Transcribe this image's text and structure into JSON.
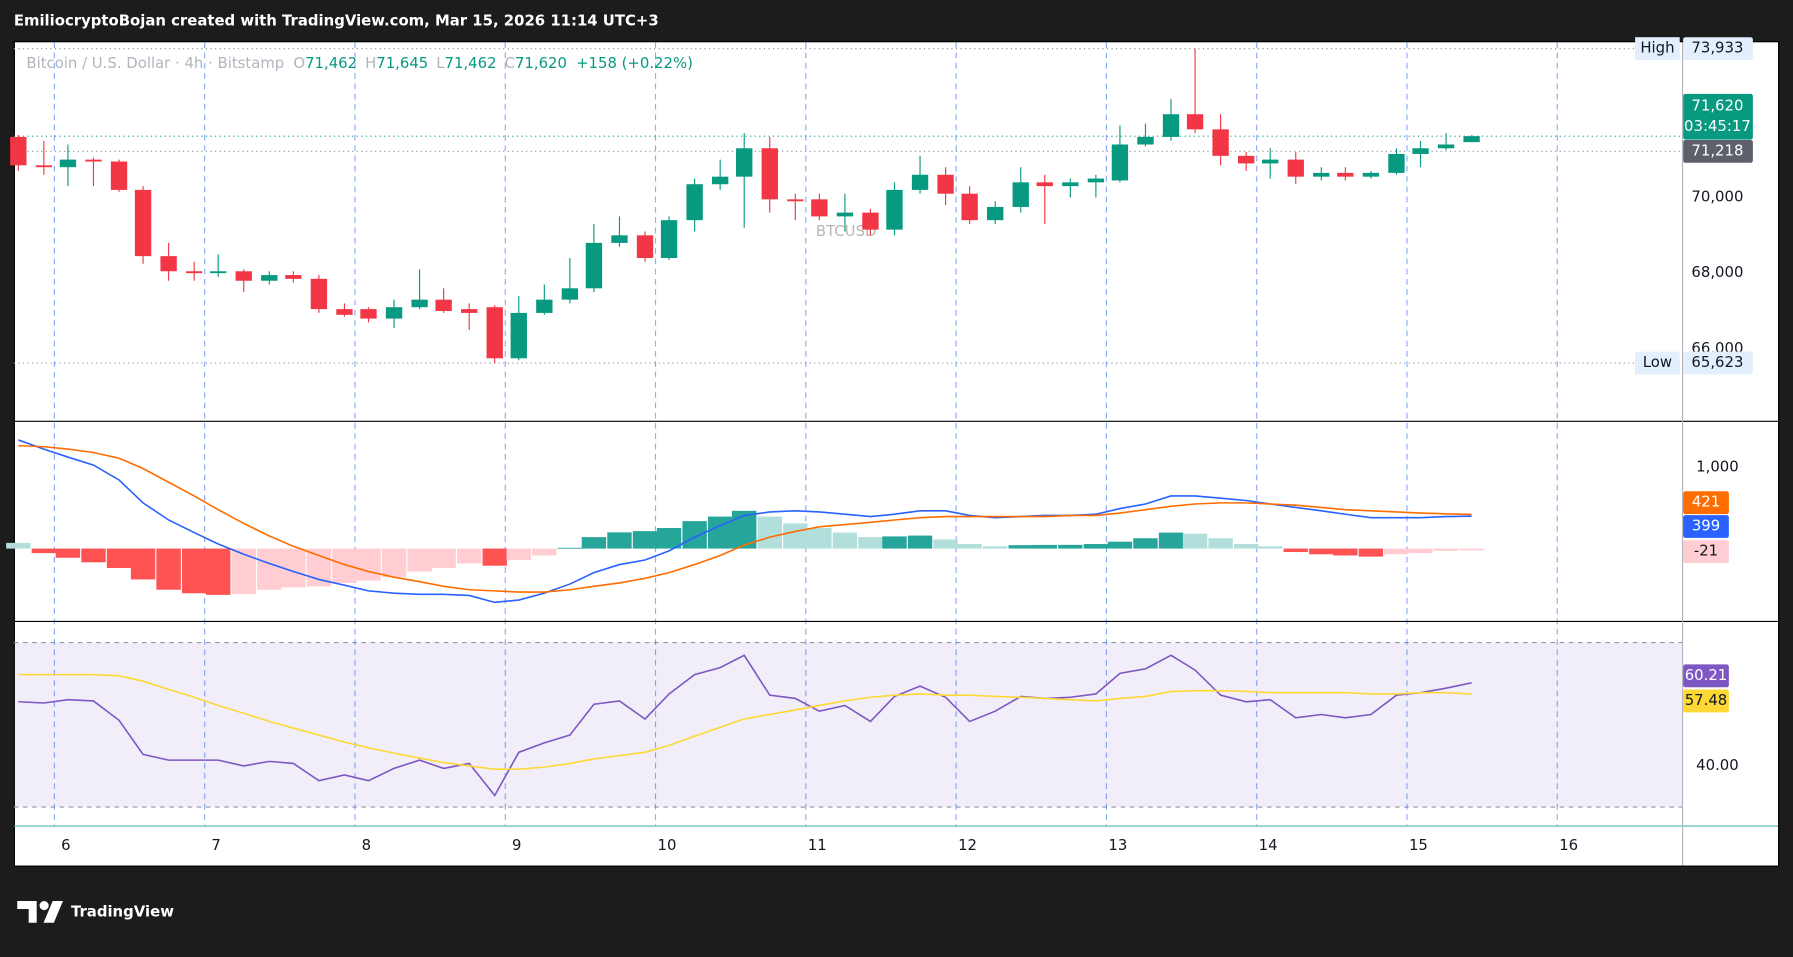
{
  "header": {
    "text": "EmiliocryptoBojan created with TradingView.com, Mar 15, 2026 11:14 UTC+3"
  },
  "footer": {
    "brand": "TradingView"
  },
  "chart_data": [
    {
      "type": "candlestick",
      "watermark": "BTCUSD",
      "legend": {
        "symbol": "Bitcoin / U.S. Dollar · 4h · Bitstamp",
        "items": [
          {
            "key": "O",
            "value": "71,462"
          },
          {
            "key": "H",
            "value": "71,645"
          },
          {
            "key": "L",
            "value": "71,462"
          },
          {
            "key": "C",
            "value": "71,620"
          }
        ],
        "change": "+158 (+0.22%)"
      },
      "up_color": "#089981",
      "down_color": "#f23645",
      "xlim": [
        5.73,
        16.83
      ],
      "xticks": [
        6,
        7,
        8,
        9,
        10,
        11,
        12,
        13,
        14,
        15,
        16
      ],
      "xgrid": true,
      "ygrid": false,
      "ylim": [
        64100,
        74100
      ],
      "yticks": [
        {
          "value": 66000,
          "label": "66,000"
        },
        {
          "value": 68000,
          "label": "68,000"
        },
        {
          "value": 70000,
          "label": "70,000"
        }
      ],
      "x": [
        5.76,
        5.93,
        6.09,
        6.26,
        6.43,
        6.59,
        6.76,
        6.93,
        7.09,
        7.26,
        7.43,
        7.59,
        7.76,
        7.93,
        8.09,
        8.26,
        8.43,
        8.59,
        8.76,
        8.93,
        9.09,
        9.26,
        9.43,
        9.59,
        9.76,
        9.93,
        10.09,
        10.26,
        10.43,
        10.59,
        10.76,
        10.93,
        11.09,
        11.26,
        11.43,
        11.59,
        11.76,
        11.93,
        12.09,
        12.26,
        12.43,
        12.59,
        12.76,
        12.93,
        13.09,
        13.26,
        13.43,
        13.59,
        13.76,
        13.93,
        14.09,
        14.26,
        14.43,
        14.59,
        14.76,
        14.93,
        15.09,
        15.26,
        15.43
      ],
      "open": [
        71600,
        70850,
        70800,
        71000,
        70950,
        70200,
        68450,
        68050,
        68000,
        68050,
        67800,
        67950,
        67850,
        67050,
        67050,
        66800,
        67100,
        67300,
        67050,
        67100,
        65750,
        66950,
        67300,
        67600,
        68800,
        69000,
        68400,
        69400,
        70350,
        70550,
        71300,
        69950,
        69950,
        69500,
        69600,
        69150,
        70200,
        70600,
        70100,
        69400,
        69750,
        70400,
        70300,
        70400,
        70450,
        71400,
        71600,
        72200,
        71800,
        71100,
        70900,
        71000,
        70550,
        70650,
        70550,
        70650,
        71150,
        71300,
        71462
      ],
      "high": [
        71650,
        71500,
        71400,
        71050,
        71000,
        70300,
        68800,
        68300,
        68500,
        68100,
        68050,
        68050,
        67950,
        67200,
        67100,
        67300,
        68100,
        67600,
        67200,
        67150,
        67400,
        67700,
        68400,
        69300,
        69500,
        69100,
        69500,
        70500,
        71000,
        71700,
        71600,
        70100,
        70100,
        70100,
        69700,
        70400,
        71100,
        70800,
        70300,
        69900,
        70800,
        70600,
        70500,
        70600,
        71900,
        71950,
        72600,
        73933,
        72200,
        71200,
        71300,
        71200,
        70800,
        70800,
        70700,
        71300,
        71500,
        71700,
        71645
      ],
      "low": [
        70700,
        70600,
        70300,
        70300,
        70150,
        68250,
        67800,
        67800,
        67900,
        67500,
        67700,
        67750,
        66950,
        66850,
        66700,
        66550,
        67050,
        66950,
        66500,
        65623,
        65700,
        66900,
        67200,
        67500,
        68700,
        68300,
        68350,
        69100,
        70200,
        69200,
        69600,
        69400,
        69400,
        69100,
        69000,
        69000,
        70100,
        69800,
        69300,
        69300,
        69600,
        69300,
        70000,
        70000,
        70400,
        71350,
        71500,
        71700,
        70850,
        70700,
        70500,
        70350,
        70450,
        70450,
        70500,
        70600,
        70800,
        71250,
        71462
      ],
      "close": [
        70850,
        70800,
        71000,
        70950,
        70200,
        68450,
        68050,
        68000,
        68050,
        67800,
        67950,
        67850,
        67050,
        66900,
        66800,
        67100,
        67300,
        67000,
        66950,
        65750,
        66950,
        67300,
        67600,
        68800,
        69000,
        68400,
        69400,
        70350,
        70550,
        71300,
        69950,
        69900,
        69500,
        69600,
        69150,
        70200,
        70600,
        70100,
        69400,
        69750,
        70400,
        70300,
        70400,
        70500,
        71400,
        71600,
        72200,
        71800,
        71100,
        70900,
        71000,
        70550,
        70650,
        70550,
        70650,
        71150,
        71300,
        71400,
        71620
      ],
      "price_lines": [
        {
          "name": "High",
          "value": 73933,
          "label": "73,933",
          "color": "#e3effd",
          "line_color": "#9598a1"
        },
        {
          "name": "Low",
          "value": 65623,
          "label": "65,623",
          "color": "#e3effd",
          "line_color": "#9598a1"
        },
        {
          "value": 71620,
          "label": "71,620",
          "countdown": "03:45:17",
          "color": "#089981",
          "line_color": "#089981"
        },
        {
          "value": 71218,
          "label": "71,218",
          "color": "#5d606b",
          "line_color": "#9598a1"
        }
      ]
    },
    {
      "type": "combo",
      "ylim": [
        -890,
        1560
      ],
      "yticks": [
        {
          "value": 1000,
          "label": "1,000"
        }
      ],
      "series": [
        {
          "kind": "histogram",
          "last_label": true,
          "color": "#ffcdd2",
          "values": [
            70,
            -56,
            -113,
            -169,
            -239,
            -380,
            -507,
            -550,
            -570,
            -560,
            -507,
            -479,
            -465,
            -423,
            -394,
            -352,
            -282,
            -239,
            -183,
            -211,
            -141,
            -85,
            10,
            141,
            200,
            215,
            253,
            338,
            394,
            465,
            394,
            310,
            253,
            197,
            141,
            150,
            160,
            113,
            56,
            28,
            42,
            45,
            46,
            56,
            85,
            127,
            197,
            183,
            127,
            56,
            28,
            -42,
            -70,
            -85,
            -99,
            -70,
            -56,
            -28,
            -21
          ],
          "colors": [
            "#b2dfdb",
            "#ff5252",
            "#ff5252",
            "#ff5252",
            "#ff5252",
            "#ff5252",
            "#ff5252",
            "#ff5252",
            "#ff5252",
            "#ffcdd2",
            "#ffcdd2",
            "#ffcdd2",
            "#ffcdd2",
            "#ffcdd2",
            "#ffcdd2",
            "#ffcdd2",
            "#ffcdd2",
            "#ffcdd2",
            "#ffcdd2",
            "#ff5252",
            "#ffcdd2",
            "#ffcdd2",
            "#26a69a",
            "#26a69a",
            "#26a69a",
            "#26a69a",
            "#26a69a",
            "#26a69a",
            "#26a69a",
            "#26a69a",
            "#b2dfdb",
            "#b2dfdb",
            "#b2dfdb",
            "#b2dfdb",
            "#b2dfdb",
            "#26a69a",
            "#26a69a",
            "#b2dfdb",
            "#b2dfdb",
            "#b2dfdb",
            "#26a69a",
            "#26a69a",
            "#26a69a",
            "#26a69a",
            "#26a69a",
            "#26a69a",
            "#26a69a",
            "#b2dfdb",
            "#b2dfdb",
            "#b2dfdb",
            "#b2dfdb",
            "#ff5252",
            "#ff5252",
            "#ff5252",
            "#ff5252",
            "#ffcdd2",
            "#ffcdd2",
            "#ffcdd2",
            "#ffcdd2"
          ]
        },
        {
          "kind": "line",
          "last_label": true,
          "color": "#2962ff",
          "values": [
            1338,
            1225,
            1127,
            1028,
            845,
            563,
            352,
            197,
            56,
            -70,
            -183,
            -282,
            -380,
            -451,
            -521,
            -549,
            -563,
            -563,
            -577,
            -662,
            -634,
            -549,
            -437,
            -296,
            -197,
            -141,
            -28,
            141,
            282,
            408,
            451,
            465,
            451,
            423,
            394,
            423,
            465,
            465,
            408,
            380,
            394,
            408,
            408,
            423,
            493,
            549,
            648,
            648,
            620,
            592,
            549,
            507,
            465,
            423,
            380,
            380,
            380,
            394,
            399
          ]
        },
        {
          "kind": "line",
          "last_label": true,
          "color": "#ff6d00",
          "values": [
            1268,
            1254,
            1225,
            1183,
            1113,
            986,
            817,
            648,
            479,
            310,
            155,
            28,
            -85,
            -197,
            -282,
            -352,
            -408,
            -465,
            -507,
            -521,
            -535,
            -535,
            -507,
            -465,
            -423,
            -366,
            -296,
            -197,
            -85,
            42,
            141,
            211,
            268,
            296,
            324,
            352,
            380,
            394,
            394,
            394,
            394,
            394,
            408,
            408,
            437,
            479,
            521,
            549,
            563,
            563,
            549,
            535,
            507,
            479,
            465,
            451,
            437,
            428,
            421
          ]
        }
      ]
    },
    {
      "type": "line",
      "ylim": [
        25.5,
        75
      ],
      "yticks": [
        {
          "value": 40,
          "label": "40.00"
        }
      ],
      "band": [
        30,
        70
      ],
      "band_color": "#7e57c2",
      "series": [
        {
          "last_label": true,
          "color": "#7e57c2",
          "values": [
            55.6,
            55.3,
            56.1,
            55.8,
            51.1,
            42.8,
            41.4,
            41.4,
            41.4,
            40.0,
            41.1,
            40.6,
            36.4,
            37.8,
            36.4,
            39.4,
            41.4,
            39.4,
            40.6,
            32.8,
            43.3,
            45.6,
            47.5,
            55.0,
            55.8,
            51.4,
            57.5,
            62.2,
            63.9,
            66.9,
            57.2,
            56.4,
            53.3,
            54.7,
            50.8,
            56.9,
            59.4,
            56.7,
            50.8,
            53.3,
            56.9,
            56.4,
            56.7,
            57.5,
            62.5,
            63.6,
            66.9,
            63.3,
            57.2,
            55.6,
            56.1,
            51.7,
            52.5,
            51.7,
            52.5,
            57.2,
            57.8,
            58.9,
            60.21
          ]
        },
        {
          "last_label": true,
          "color": "#fdd835",
          "values": [
            62.2,
            62.2,
            62.2,
            62.2,
            61.9,
            60.6,
            58.6,
            56.7,
            54.7,
            52.8,
            50.8,
            49.2,
            47.5,
            45.8,
            44.4,
            43.1,
            41.9,
            40.8,
            40.0,
            39.2,
            39.2,
            39.7,
            40.6,
            41.7,
            42.5,
            43.3,
            45.0,
            47.2,
            49.4,
            51.4,
            52.5,
            53.6,
            54.7,
            55.8,
            56.7,
            57.2,
            57.5,
            57.2,
            57.2,
            56.9,
            56.7,
            56.4,
            56.1,
            55.8,
            56.4,
            56.9,
            58.1,
            58.3,
            58.3,
            58.1,
            57.8,
            57.8,
            57.8,
            57.8,
            57.5,
            57.5,
            57.8,
            57.8,
            57.48
          ]
        }
      ]
    }
  ]
}
